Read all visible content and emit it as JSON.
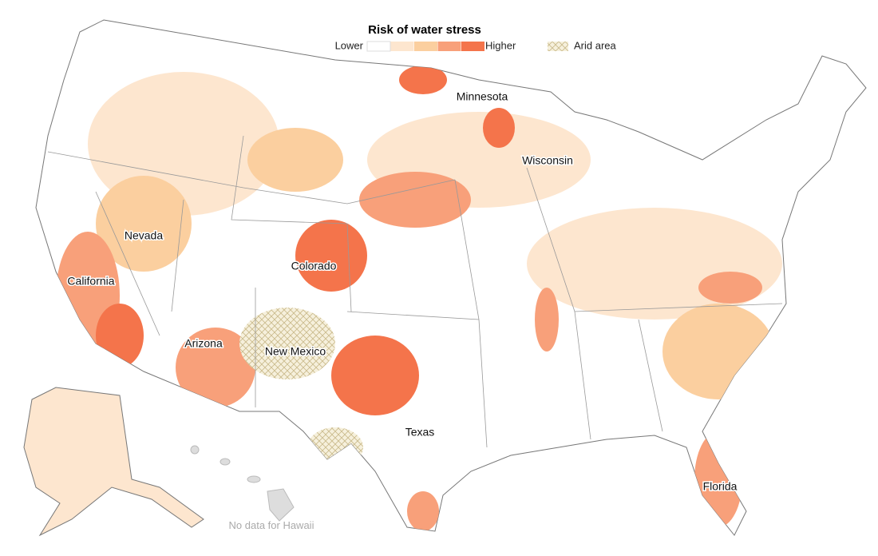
{
  "legend": {
    "title": "Risk of water stress",
    "low_label": "Lower",
    "high_label": "Higher",
    "colors": [
      "#ffffff",
      "#fde6cf",
      "#fbcf9f",
      "#f8a07a",
      "#f4744b"
    ],
    "arid_label": "Arid area"
  },
  "labels": [
    "Minnesota",
    "Wisconsin",
    "Nevada",
    "Colorado",
    "California",
    "Arizona",
    "New Mexico",
    "Texas",
    "Florida"
  ],
  "note": "No data for Hawaii"
}
